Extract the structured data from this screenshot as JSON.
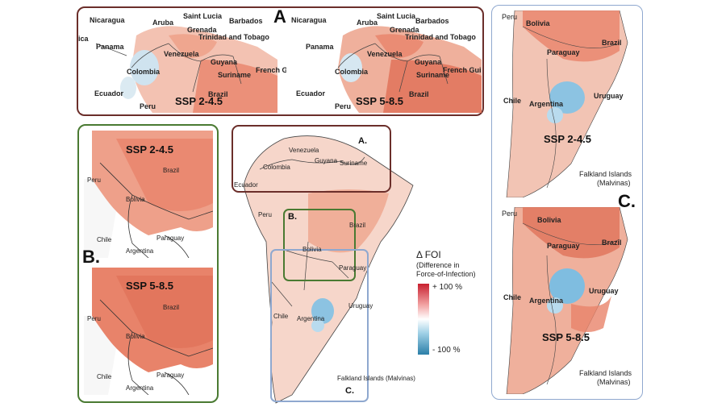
{
  "panel_letters": {
    "a": "A.",
    "b": "B.",
    "c": "C."
  },
  "scenarios": {
    "ssp245": "SSP 2-4.5",
    "ssp585": "SSP 5-8.5"
  },
  "countries": {
    "nicaragua": "Nicaragua",
    "aruba": "Aruba",
    "saint_lucia": "Saint Lucia",
    "barbados": "Barbados",
    "grenada": "Grenada",
    "trinidad": "Trinidad and Tobago",
    "panama": "Panama",
    "ica": "ica",
    "venezuela": "Venezuela",
    "guyana": "Guyana",
    "french_guiana": "French Gui",
    "colombia": "Colombia",
    "suriname": "Suriname",
    "ecuador": "Ecuador",
    "peru": "Peru",
    "brazil": "Brazil",
    "bolivia": "Bolivia",
    "paraguay": "Paraguay",
    "chile": "Chile",
    "argentina": "Argentina",
    "uruguay": "Uruguay",
    "falkland_a": "Falkland Islands",
    "falkland_b": "(Malvinas)",
    "falkland_full": "Falkland Islands (Malvinas)"
  },
  "legend": {
    "title": "Δ FOI",
    "subtitle_1": "(Difference in",
    "subtitle_2": "Force-of-Infection)",
    "max_label": "+ 100 %",
    "min_label": "- 100 %",
    "colors": {
      "high": "#c8202f",
      "mid": "#ffffff",
      "low": "#2c7fa8"
    }
  },
  "colors": {
    "frame_a": "#6b2e2a",
    "frame_b": "#4a7a32",
    "frame_c": "#8fa8cf",
    "increase": "#e8836a",
    "decrease": "#9ccbe6"
  }
}
